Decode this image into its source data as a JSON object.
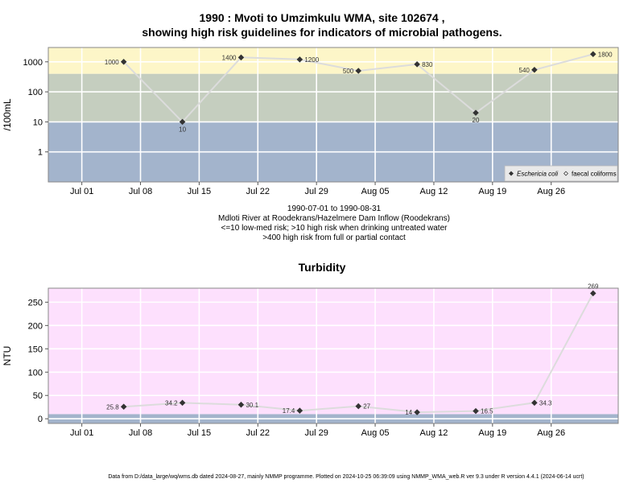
{
  "chart_data": [
    {
      "type": "line",
      "title_line1": "1990 : Mvoti to Umzimkulu WMA, site 102674 ,",
      "title_line2": "showing high risk guidelines for indicators of microbial pathogens.",
      "ylabel": "/100mL",
      "y_scale": "log",
      "ylim": [
        0.1,
        3000
      ],
      "y_ticks": [
        1,
        10,
        100,
        1000
      ],
      "y_tick_labels": [
        "1",
        "10",
        "100",
        "1000"
      ],
      "xlim": [
        "1990-06-27",
        "1990-09-03"
      ],
      "x_ticks": [
        "1990-07-01",
        "1990-07-08",
        "1990-07-15",
        "1990-07-22",
        "1990-07-29",
        "1990-08-05",
        "1990-08-12",
        "1990-08-19",
        "1990-08-26"
      ],
      "x_tick_labels": [
        "Jul 01",
        "Jul 08",
        "Jul 15",
        "Jul 22",
        "Jul 29",
        "Aug 05",
        "Aug 12",
        "Aug 19",
        "Aug 26"
      ],
      "bands": [
        {
          "from": 0.1,
          "to": 10,
          "color": "#a3b4cc"
        },
        {
          "from": 10,
          "to": 400,
          "color": "#c5cebf"
        },
        {
          "from": 400,
          "to": 3000,
          "color": "#fdf6c8"
        }
      ],
      "grid": true,
      "legend_position": "bottom-right",
      "series": [
        {
          "name": "Eschericia coli",
          "marker": "filled-diamond",
          "color": "#333333",
          "line_color": "#dcdcdc",
          "points": [
            {
              "x": "1990-07-06",
              "y": 1000,
              "label": "1000"
            },
            {
              "x": "1990-07-13",
              "y": 10,
              "label": "10"
            },
            {
              "x": "1990-07-20",
              "y": 1400,
              "label": "1400"
            },
            {
              "x": "1990-07-27",
              "y": 1200,
              "label": "1200"
            },
            {
              "x": "1990-08-03",
              "y": 500,
              "label": "500"
            },
            {
              "x": "1990-08-10",
              "y": 830,
              "label": "830"
            },
            {
              "x": "1990-08-17",
              "y": 20,
              "label": "20"
            },
            {
              "x": "1990-08-24",
              "y": 540,
              "label": "540"
            },
            {
              "x": "1990-08-31",
              "y": 1800,
              "label": "1800"
            }
          ]
        },
        {
          "name": "faecal coliforms",
          "marker": "open-diamond",
          "color": "#333333",
          "points": []
        }
      ]
    },
    {
      "type": "line",
      "title": "Turbidity",
      "ylabel": "NTU",
      "ylim": [
        -10,
        280
      ],
      "y_ticks": [
        0,
        50,
        100,
        150,
        200,
        250
      ],
      "y_tick_labels": [
        "0",
        "50",
        "100",
        "150",
        "200",
        "250"
      ],
      "xlim": [
        "1990-06-27",
        "1990-09-03"
      ],
      "x_ticks": [
        "1990-07-01",
        "1990-07-08",
        "1990-07-15",
        "1990-07-22",
        "1990-07-29",
        "1990-08-05",
        "1990-08-12",
        "1990-08-19",
        "1990-08-26"
      ],
      "x_tick_labels": [
        "Jul 01",
        "Jul 08",
        "Jul 15",
        "Jul 22",
        "Jul 29",
        "Aug 05",
        "Aug 12",
        "Aug 19",
        "Aug 26"
      ],
      "bands": [
        {
          "from": -10,
          "to": 10,
          "color": "#a3b4cc"
        },
        {
          "from": 10,
          "to": 280,
          "color": "#fde0fd"
        }
      ],
      "grid": true,
      "series": [
        {
          "marker": "filled-diamond",
          "color": "#333333",
          "line_color": "#dcdcdc",
          "points": [
            {
              "x": "1990-07-06",
              "y": 25.8,
              "label": "25.8"
            },
            {
              "x": "1990-07-13",
              "y": 34.2,
              "label": "34.2"
            },
            {
              "x": "1990-07-20",
              "y": 30.1,
              "label": "30.1"
            },
            {
              "x": "1990-07-27",
              "y": 17.4,
              "label": "17.4"
            },
            {
              "x": "1990-08-03",
              "y": 27,
              "label": "27"
            },
            {
              "x": "1990-08-10",
              "y": 14,
              "label": "14"
            },
            {
              "x": "1990-08-17",
              "y": 16.5,
              "label": "16.5"
            },
            {
              "x": "1990-08-24",
              "y": 34.3,
              "label": "34.3"
            },
            {
              "x": "1990-08-31",
              "y": 269,
              "label": "269"
            }
          ]
        }
      ]
    }
  ],
  "captions": [
    "1990-07-01 to 1990-08-31",
    "Mdloti River at Roodekrans/Hazelmere Dam Inflow (Roodekrans)",
    "<=10 low-med risk; >10 high risk when drinking untreated water",
    ">400 high risk from full or partial contact"
  ],
  "footer": "Data from D:/data_large/wq/wms.db dated 2024-08-27, mainly NMMP programme. Plotted on 2024-10-25 06:39:09 using NMMP_WMA_web.R ver 9.3 under R version 4.4.1 (2024-06-14 ucrt)"
}
